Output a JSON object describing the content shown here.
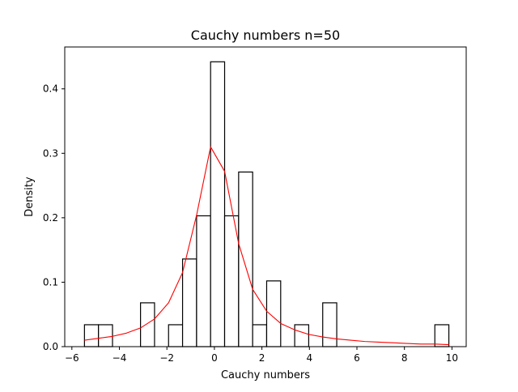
{
  "chart_data": {
    "type": "bar",
    "title": "Cauchy numbers n=50",
    "xlabel": "Cauchy numbers",
    "ylabel": "Density",
    "xlim": [
      -6.3,
      10.6
    ],
    "ylim": [
      0,
      0.465
    ],
    "xticks": [
      -6,
      -4,
      -2,
      0,
      2,
      4,
      6,
      8,
      10
    ],
    "yticks": [
      0.0,
      0.1,
      0.2,
      0.3,
      0.4
    ],
    "xtick_labels": [
      "−6",
      "−4",
      "−2",
      "0",
      "2",
      "4",
      "6",
      "8",
      "10"
    ],
    "ytick_labels": [
      "0.0",
      "0.1",
      "0.2",
      "0.3",
      "0.4"
    ],
    "grid": false,
    "histogram": {
      "bin_width": 0.59,
      "bins": [
        {
          "x0": -5.47,
          "value": 0.034
        },
        {
          "x0": -4.88,
          "value": 0.034
        },
        {
          "x0": -4.29,
          "value": 0.0
        },
        {
          "x0": -3.7,
          "value": 0.0
        },
        {
          "x0": -3.11,
          "value": 0.068
        },
        {
          "x0": -2.52,
          "value": 0.0
        },
        {
          "x0": -1.93,
          "value": 0.034
        },
        {
          "x0": -1.34,
          "value": 0.136
        },
        {
          "x0": -0.75,
          "value": 0.203
        },
        {
          "x0": -0.16,
          "value": 0.442
        },
        {
          "x0": 0.43,
          "value": 0.203
        },
        {
          "x0": 1.02,
          "value": 0.271
        },
        {
          "x0": 1.61,
          "value": 0.034
        },
        {
          "x0": 2.2,
          "value": 0.102
        },
        {
          "x0": 2.79,
          "value": 0.0
        },
        {
          "x0": 3.38,
          "value": 0.034
        },
        {
          "x0": 3.97,
          "value": 0.0
        },
        {
          "x0": 4.56,
          "value": 0.068
        },
        {
          "x0": 5.15,
          "value": 0.0
        },
        {
          "x0": 5.74,
          "value": 0.0
        },
        {
          "x0": 6.33,
          "value": 0.0
        },
        {
          "x0": 6.92,
          "value": 0.0
        },
        {
          "x0": 7.51,
          "value": 0.0
        },
        {
          "x0": 8.1,
          "value": 0.0
        },
        {
          "x0": 8.69,
          "value": 0.0
        },
        {
          "x0": 9.28,
          "value": 0.034
        }
      ]
    },
    "density_line": {
      "color": "#ff0000",
      "x": [
        -5.47,
        -4.88,
        -4.29,
        -3.7,
        -3.11,
        -2.52,
        -1.93,
        -1.34,
        -0.75,
        -0.16,
        0.43,
        1.02,
        1.61,
        2.2,
        2.79,
        3.38,
        3.97,
        4.56,
        5.15,
        5.74,
        6.33,
        6.92,
        7.51,
        8.1,
        8.69,
        9.28,
        9.87
      ],
      "y": [
        0.01,
        0.013,
        0.016,
        0.021,
        0.029,
        0.043,
        0.068,
        0.115,
        0.204,
        0.31,
        0.272,
        0.16,
        0.089,
        0.055,
        0.036,
        0.026,
        0.019,
        0.015,
        0.012,
        0.01,
        0.008,
        0.007,
        0.006,
        0.005,
        0.004,
        0.004,
        0.003
      ]
    },
    "bar_edge_color": "#000000",
    "bar_fill_color": "#ffffff"
  }
}
